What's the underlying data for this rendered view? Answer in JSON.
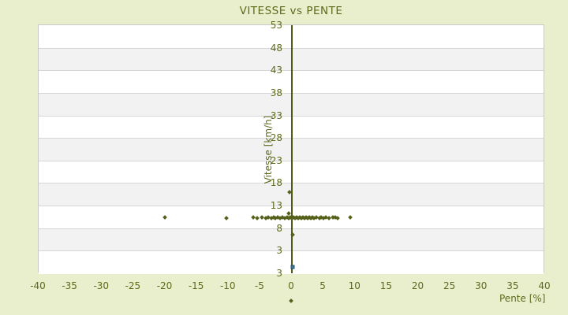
{
  "colors": {
    "background": "#e9eecd",
    "text": "#5c6b1b",
    "band_light": "#ffffff",
    "band_dark": "#f2f2f2",
    "grid_line": "#d6d6d6",
    "plot_border": "#c9c9c9",
    "axis_line": "#4f5c15",
    "marker": "#55611a",
    "special_marker_fill": "#3f7d9e",
    "special_marker_border": "#234f66"
  },
  "chart_data": {
    "type": "scatter",
    "title": "VITESSE vs PENTE",
    "xlabel": "Pente [%]",
    "ylabel": "Vitesse [km/h]",
    "xlim": [
      -40,
      40
    ],
    "ylim": [
      -2,
      53
    ],
    "grid": "horizontal-bands",
    "legend": "none",
    "x_ticks": [
      "-40",
      "-35",
      "-30",
      "-25",
      "-20",
      "-15",
      "-10",
      "-5",
      "0",
      "5",
      "10",
      "15",
      "20",
      "25",
      "30",
      "35",
      "40"
    ],
    "y_ticks": [
      "53",
      "48",
      "43",
      "38",
      "33",
      "28",
      "23",
      "18",
      "13",
      "8",
      "3",
      "3"
    ],
    "series": [
      {
        "name": "vitesse-vs-pente-points",
        "marker": "diamond",
        "color": "#55611a",
        "points": [
          [
            -20.1,
            10.35
          ],
          [
            -10.35,
            10.3
          ],
          [
            -6.1,
            10.4
          ],
          [
            -5.5,
            10.3
          ],
          [
            -4.7,
            10.35
          ],
          [
            -4.1,
            10.3
          ],
          [
            -3.7,
            10.4
          ],
          [
            -3.3,
            10.3
          ],
          [
            -2.9,
            10.35
          ],
          [
            -2.6,
            10.3
          ],
          [
            -2.2,
            10.4
          ],
          [
            -1.9,
            10.3
          ],
          [
            -1.5,
            10.35
          ],
          [
            -1.1,
            10.3
          ],
          [
            -0.8,
            10.4
          ],
          [
            -0.55,
            10.3
          ],
          [
            -0.3,
            10.35
          ],
          [
            -0.05,
            10.3
          ],
          [
            0.2,
            10.4
          ],
          [
            0.45,
            10.3
          ],
          [
            0.7,
            10.35
          ],
          [
            0.95,
            10.3
          ],
          [
            1.2,
            10.4
          ],
          [
            1.45,
            10.3
          ],
          [
            1.7,
            10.35
          ],
          [
            1.95,
            10.3
          ],
          [
            2.2,
            10.4
          ],
          [
            2.45,
            10.3
          ],
          [
            2.7,
            10.35
          ],
          [
            2.95,
            10.3
          ],
          [
            3.2,
            10.4
          ],
          [
            3.5,
            10.3
          ],
          [
            3.9,
            10.35
          ],
          [
            4.3,
            10.3
          ],
          [
            4.65,
            10.4
          ],
          [
            5.0,
            10.3
          ],
          [
            5.4,
            10.35
          ],
          [
            5.8,
            10.3
          ],
          [
            6.5,
            10.35
          ],
          [
            6.85,
            10.4
          ],
          [
            7.25,
            10.3
          ],
          [
            9.2,
            10.35
          ],
          [
            -0.4,
            16.0
          ],
          [
            -0.5,
            11.3
          ],
          [
            0.1,
            6.6
          ],
          [
            -0.15,
            -8.1
          ]
        ]
      },
      {
        "name": "highlight-point",
        "marker": "square",
        "color": "#3f7d9e",
        "points": [
          [
            0.1,
            -0.6
          ]
        ]
      }
    ]
  }
}
